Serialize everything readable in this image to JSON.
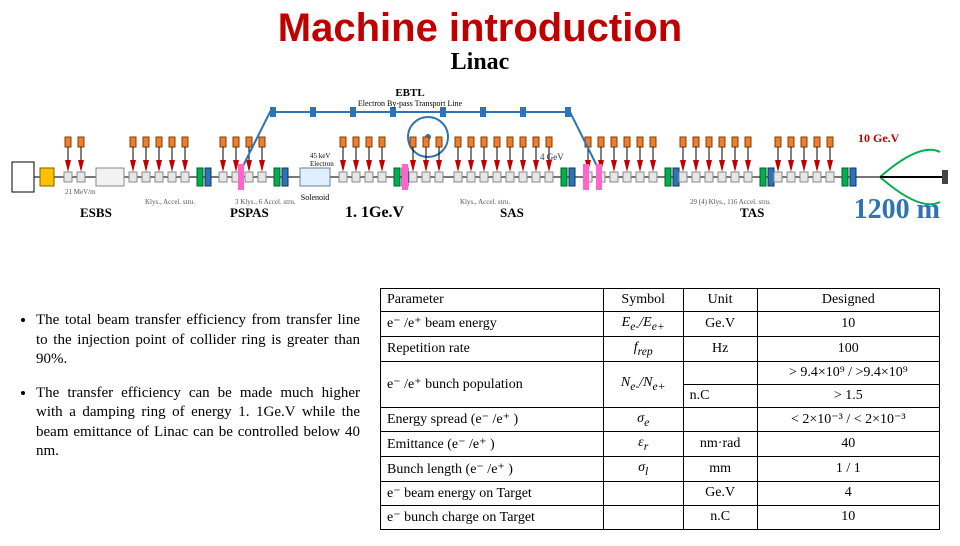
{
  "title": "Machine introduction",
  "subtitle": "Linac",
  "annotation_energy": "1. 1Ge.V",
  "annotation_length": "1200 m",
  "diagram_labels": {
    "ebtl": "EBTL",
    "ebtl_sub": "Electron By-pass Transport Line",
    "tenge": "10 Ge.V",
    "esbs": "ESBS",
    "pspas": "PSPAS",
    "sas": "SAS",
    "tas": "TAS"
  },
  "diagram_style": {
    "colors": {
      "klystron": "#ed7d31",
      "triangle": "#c00000",
      "quad_blue": "#2e74b5",
      "quad_green": "#00b050",
      "bypass": "#2e74b5",
      "ring": "#2e74b5",
      "beam_right": "#00b050",
      "beam_end": "#000000",
      "box_border": "#000000",
      "label_red": "#c00000",
      "label_blue": "#203864"
    },
    "font_small": 9
  },
  "bullets": [
    "The total beam transfer efficiency from transfer line to the injection point of collider ring is greater than 90%.",
    "The transfer efficiency can be made much higher with a damping ring of energy 1. 1Ge.V while the beam emittance of Linac can be controlled below 40 nm."
  ],
  "table": {
    "headers": [
      "Parameter",
      "Symbol",
      "Unit",
      "Designed"
    ],
    "rows": [
      {
        "param": "e⁻ /e⁺ beam energy",
        "sym": "E<sub>e-</sub>/E<sub>e+</sub>",
        "unit": "Ge.V",
        "val": "10"
      },
      {
        "param": "Repetition rate",
        "sym": "f<sub>rep</sub>",
        "unit": "Hz",
        "val": "100"
      },
      {
        "param": "e⁻ /e⁺  bunch population",
        "sym": "N<sub>e-</sub>/N<sub>e+</sub>",
        "unit": "n.C",
        "val": "> 9.4×10⁹ / >9.4×10⁹|> 1.5"
      },
      {
        "param": "Energy spread (e⁻ /e⁺ )",
        "sym": "σ<sub>e</sub>",
        "unit": "",
        "val": "< 2×10⁻³ / < 2×10⁻³"
      },
      {
        "param": "Emittance (e⁻ /e⁺ )",
        "sym": "ε<sub>r</sub>",
        "unit": "nm·rad",
        "val": "40"
      },
      {
        "param": "Bunch length (e⁻ /e⁺ )",
        "sym": "σ<sub>l</sub>",
        "unit": "mm",
        "val": "1 / 1"
      },
      {
        "param": "e⁻ beam energy on Target",
        "sym": "",
        "unit": "Ge.V",
        "val": "4"
      },
      {
        "param": "e⁻ bunch charge on Target",
        "sym": "",
        "unit": "n.C",
        "val": "10"
      }
    ]
  }
}
